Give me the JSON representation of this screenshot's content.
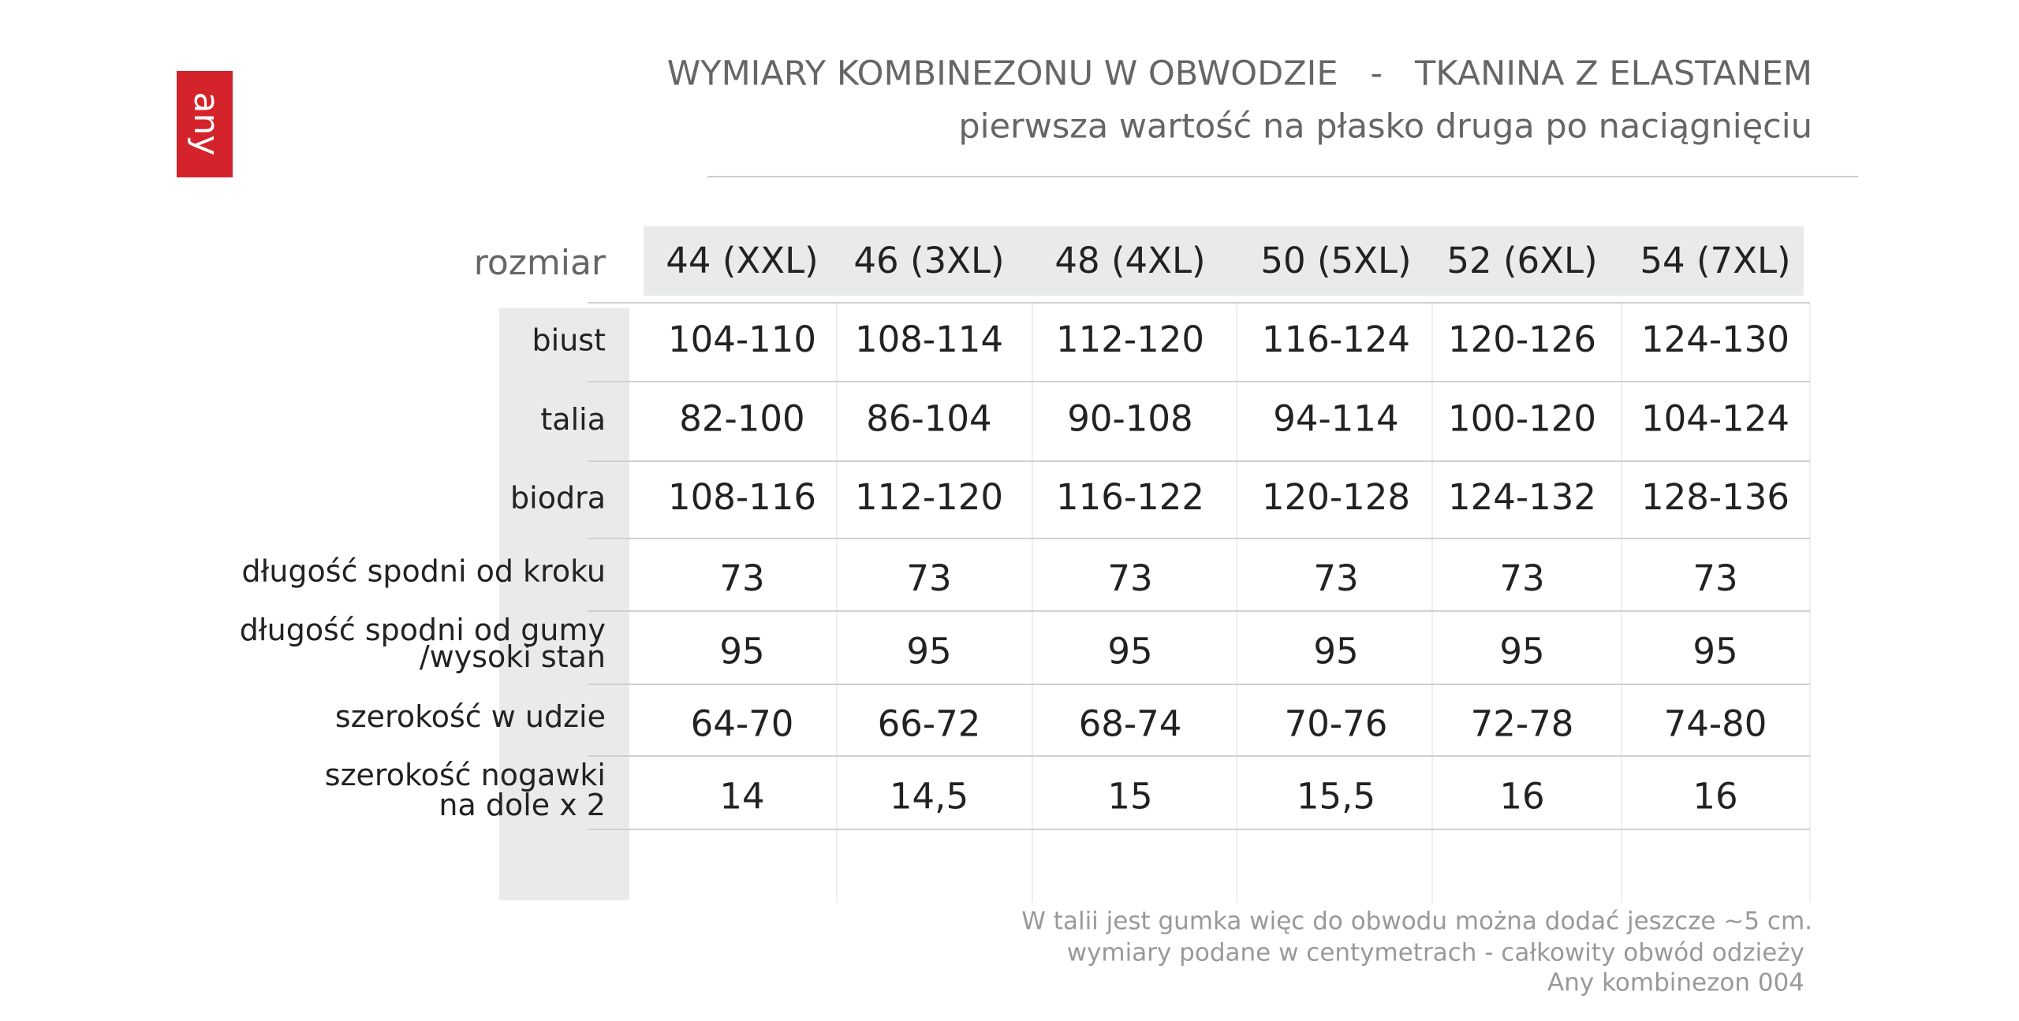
{
  "logo": "any",
  "header": {
    "title": "WYMIARY KOMBINEZONU W OBWODZIE   -   TKANINA Z ELASTANEM",
    "subtitle": "pierwsza wartość na płasko druga po naciągnięciu"
  },
  "table": {
    "corner": "rozmiar",
    "columns": [
      "44 (XXL)",
      "46 (3XL)",
      "48 (4XL)",
      "50 (5XL)",
      "52 (6XL)",
      "54 (7XL)"
    ],
    "rows": [
      {
        "label": [
          "biust"
        ],
        "values": [
          "104-110",
          "108-114",
          "112-120",
          "116-124",
          "120-126",
          "124-130"
        ]
      },
      {
        "label": [
          "talia"
        ],
        "values": [
          "82-100",
          "86-104",
          "90-108",
          "94-114",
          "100-120",
          "104-124"
        ]
      },
      {
        "label": [
          "biodra"
        ],
        "values": [
          "108-116",
          "112-120",
          "116-122",
          "120-128",
          "124-132",
          "128-136"
        ]
      },
      {
        "label": [
          "długość spodni od kroku"
        ],
        "values": [
          "73",
          "73",
          "73",
          "73",
          "73",
          "73"
        ]
      },
      {
        "label": [
          "długość spodni od gumy",
          "/wysoki stan"
        ],
        "values": [
          "95",
          "95",
          "95",
          "95",
          "95",
          "95"
        ]
      },
      {
        "label": [
          "szerokość w udzie"
        ],
        "values": [
          "64-70",
          "66-72",
          "68-74",
          "70-76",
          "72-78",
          "74-80"
        ]
      },
      {
        "label": [
          "szerokość nogawki",
          "na dole x 2"
        ],
        "values": [
          "14",
          "14,5",
          "15",
          "15,5",
          "16",
          "16"
        ]
      }
    ]
  },
  "notes": [
    "W talii jest gumka więc do obwodu można dodać jeszcze ~5 cm.",
    "wymiary podane w centymetrach - całkowity obwód odzieży",
    "Any kombinezon  004"
  ]
}
